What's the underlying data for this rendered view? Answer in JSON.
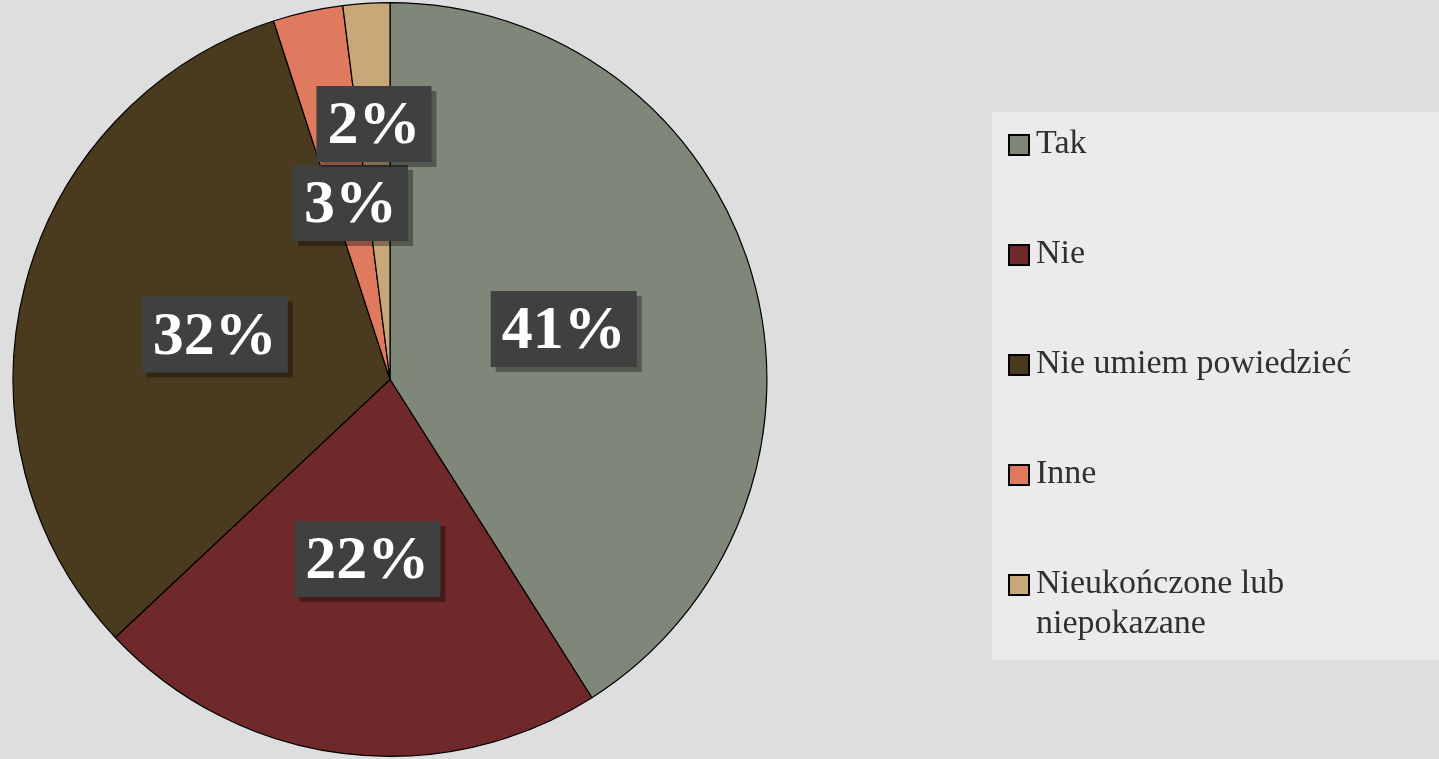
{
  "chart_data": {
    "type": "pie",
    "categories": [
      "Tak",
      "Nie",
      "Nie umiem powiedzieć",
      "Inne",
      "Nieukończone lub niepokazane"
    ],
    "values": [
      41,
      22,
      32,
      3,
      2
    ],
    "colors": [
      "#7f8878",
      "#70292b",
      "#4a3a1e",
      "#e07a5f",
      "#c8a878"
    ],
    "value_labels": [
      "41%",
      "22%",
      "32%",
      "3%",
      "2%"
    ],
    "legend": "right"
  }
}
